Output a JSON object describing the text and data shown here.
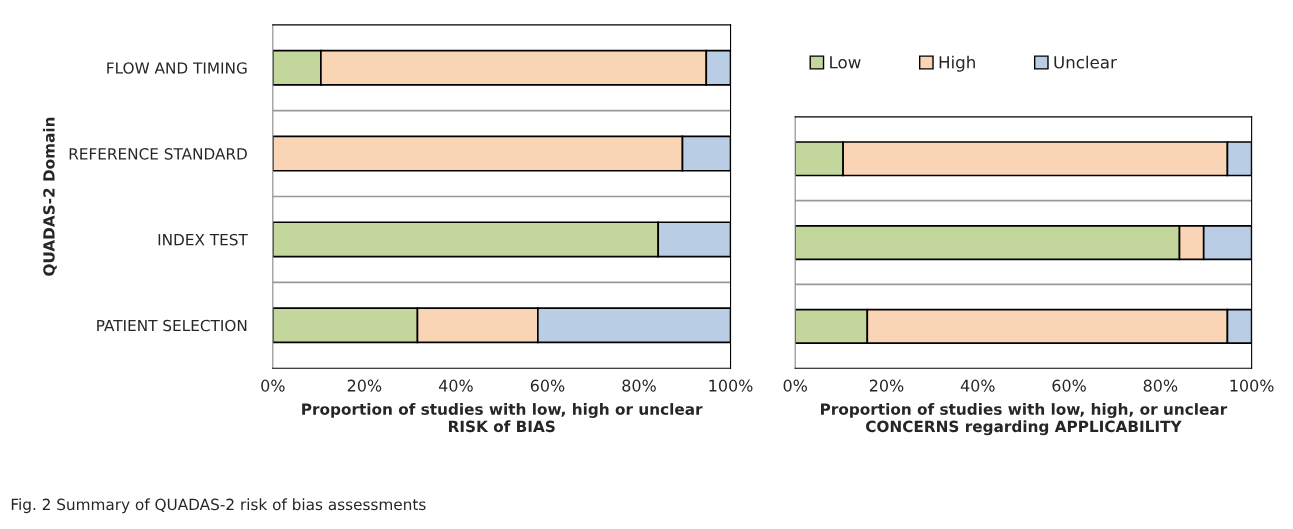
{
  "chart_data": [
    {
      "type": "bar",
      "orientation": "horizontal",
      "stacked": true,
      "ylabel": "QUADAS-2 Domain",
      "xlabel": "Proportion of studies with low, high or unclear\nRISK of BIAS",
      "categories": [
        "FLOW AND TIMING",
        "REFERENCE STANDARD",
        "INDEX TEST",
        "PATIENT SELECTION"
      ],
      "series": [
        {
          "color": "#c3d69b",
          "values": [
            10.5,
            null,
            84.2,
            31.6
          ]
        },
        {
          "color": "#fad5b5",
          "values": [
            84.2,
            89.5,
            null,
            26.3
          ]
        },
        {
          "color": "#b9cde5",
          "values": [
            5.3,
            10.5,
            15.8,
            42.1
          ]
        }
      ],
      "xlim": [
        0,
        100
      ],
      "xticks": [
        {
          "value": 0,
          "label": "0%"
        },
        {
          "value": 20,
          "label": "20%"
        },
        {
          "value": 40,
          "label": "40%"
        },
        {
          "value": 60,
          "label": "60%"
        },
        {
          "value": 80,
          "label": "80%"
        },
        {
          "value": 100,
          "label": "100%"
        }
      ],
      "grid": "y",
      "annotations": [
        "Fig. 2 Summary of QUADAS-2 risk of bias assessments"
      ]
    },
    {
      "type": "bar",
      "orientation": "horizontal",
      "stacked": true,
      "xlabel": "Proportion of studies with low, high, or unclear\nCONCERNS regarding APPLICABILITY",
      "categories": [
        null,
        null,
        null
      ],
      "series": [
        {
          "name": "Low",
          "color": "#c3d69b",
          "values": [
            10.5,
            84.2,
            15.8
          ]
        },
        {
          "name": "High",
          "color": "#fad5b5",
          "values": [
            84.2,
            5.3,
            78.9
          ]
        },
        {
          "name": "Unclear",
          "color": "#b9cde5",
          "values": [
            5.3,
            10.5,
            5.3
          ]
        }
      ],
      "xlim": [
        0,
        100
      ],
      "xticks": [
        {
          "value": 0,
          "label": "0%"
        },
        {
          "value": 20,
          "label": "20%"
        },
        {
          "value": 40,
          "label": "40%"
        },
        {
          "value": 60,
          "label": "60%"
        },
        {
          "value": 80,
          "label": "80%"
        },
        {
          "value": 100,
          "label": "100%"
        }
      ],
      "grid": "y",
      "legend": "top"
    }
  ]
}
